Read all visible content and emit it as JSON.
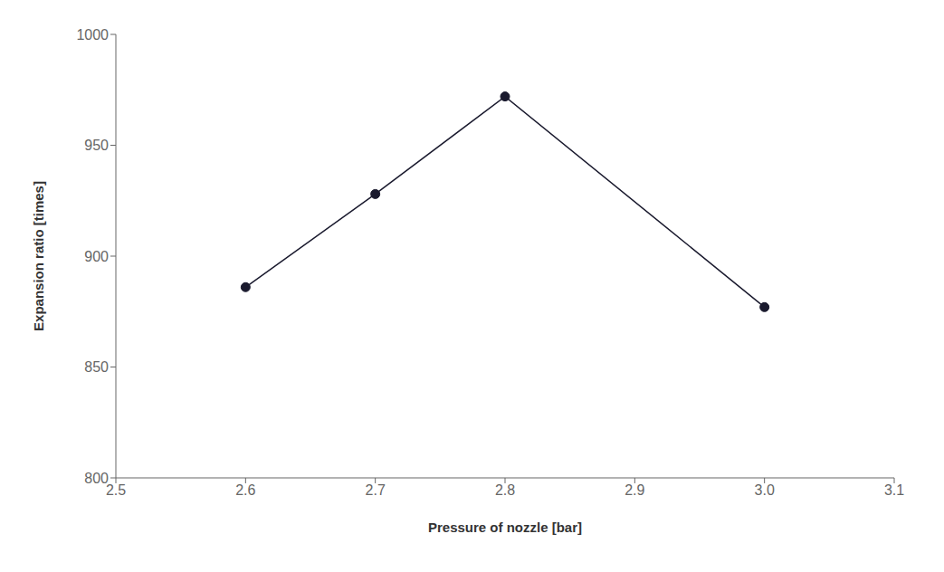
{
  "chart_data": {
    "type": "line",
    "xlabel": "Pressure of nozzle [bar]",
    "ylabel": "Expansion ratio [times]",
    "x": [
      2.6,
      2.7,
      2.8,
      3.0
    ],
    "values": [
      886,
      928,
      972,
      877
    ],
    "xlim": [
      2.5,
      3.1
    ],
    "ylim": [
      800,
      1000
    ],
    "xticks": [
      2.5,
      2.6,
      2.7,
      2.8,
      2.9,
      {
        "value": 3.0,
        "label": "3.0"
      },
      3.1
    ],
    "yticks": [
      800,
      850,
      900,
      950,
      1000
    ],
    "color": "#1a1a2e",
    "marker": "circle",
    "grid": false
  }
}
